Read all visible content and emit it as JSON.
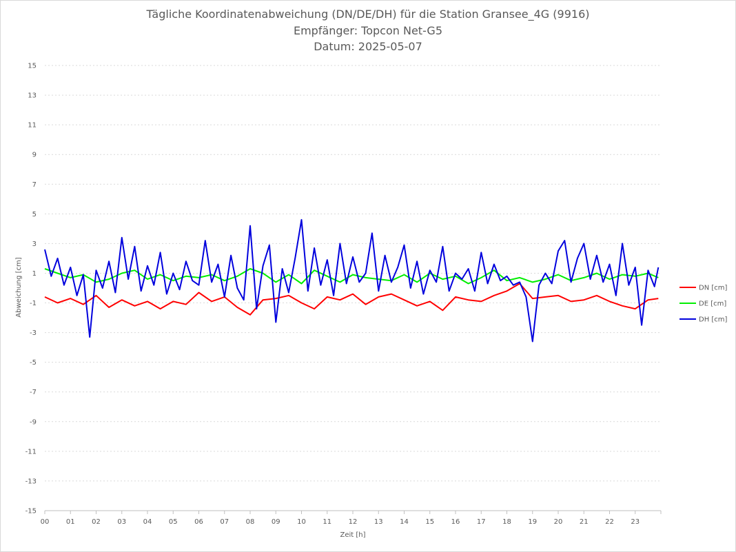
{
  "chart_data": {
    "type": "line",
    "title": "Tägliche Koordinatenabweichung (DN/DE/DH) für die Station Gransee_4G (9916)",
    "subtitle": "Empfänger: Topcon Net-G5",
    "date_line": "Datum: 2025-05-07",
    "xlabel": "Zeit [h]",
    "ylabel": "Abweichung [cm]",
    "xlim": [
      0,
      24
    ],
    "ylim": [
      -15,
      15
    ],
    "x_ticks": [
      "00",
      "01",
      "02",
      "03",
      "04",
      "05",
      "06",
      "07",
      "08",
      "09",
      "10",
      "11",
      "12",
      "13",
      "14",
      "15",
      "16",
      "17",
      "18",
      "19",
      "20",
      "21",
      "22",
      "23"
    ],
    "y_ticks": [
      "15",
      "13",
      "11",
      "9",
      "7",
      "5",
      "3",
      "1",
      "-1",
      "-3",
      "-5",
      "-7",
      "-9",
      "-11",
      "-13",
      "-15"
    ],
    "grid": true,
    "legend_position": "right",
    "series": [
      {
        "name": "DN [cm]",
        "color": "#ff0000",
        "x": [
          0.0,
          0.5,
          1.0,
          1.5,
          2.0,
          2.5,
          3.0,
          3.5,
          4.0,
          4.5,
          5.0,
          5.5,
          6.0,
          6.5,
          7.0,
          7.5,
          8.0,
          8.5,
          9.0,
          9.5,
          10.0,
          10.5,
          11.0,
          11.5,
          12.0,
          12.5,
          13.0,
          13.5,
          14.0,
          14.5,
          15.0,
          15.5,
          16.0,
          16.5,
          17.0,
          17.5,
          18.0,
          18.5,
          19.0,
          19.5,
          20.0,
          20.5,
          21.0,
          21.5,
          22.0,
          22.5,
          23.0,
          23.5,
          23.9
        ],
        "values": [
          -0.6,
          -1.0,
          -0.7,
          -1.1,
          -0.5,
          -1.3,
          -0.8,
          -1.2,
          -0.9,
          -1.4,
          -0.9,
          -1.1,
          -0.3,
          -0.9,
          -0.6,
          -1.3,
          -1.8,
          -0.8,
          -0.7,
          -0.5,
          -1.0,
          -1.4,
          -0.6,
          -0.8,
          -0.4,
          -1.1,
          -0.6,
          -0.4,
          -0.8,
          -1.2,
          -0.9,
          -1.5,
          -0.6,
          -0.8,
          -0.9,
          -0.5,
          -0.2,
          0.3,
          -0.7,
          -0.6,
          -0.5,
          -0.9,
          -0.8,
          -0.5,
          -0.9,
          -1.2,
          -1.4,
          -0.8,
          -0.7
        ]
      },
      {
        "name": "DE [cm]",
        "color": "#00ee00",
        "x": [
          0.0,
          0.5,
          1.0,
          1.5,
          2.0,
          2.5,
          3.0,
          3.5,
          4.0,
          4.5,
          5.0,
          5.5,
          6.0,
          6.5,
          7.0,
          7.5,
          8.0,
          8.5,
          9.0,
          9.5,
          10.0,
          10.5,
          11.0,
          11.5,
          12.0,
          12.5,
          13.0,
          13.5,
          14.0,
          14.5,
          15.0,
          15.5,
          16.0,
          16.5,
          17.0,
          17.5,
          18.0,
          18.5,
          19.0,
          19.5,
          20.0,
          20.5,
          21.0,
          21.5,
          22.0,
          22.5,
          23.0,
          23.5,
          23.9
        ],
        "values": [
          1.3,
          1.0,
          0.7,
          0.9,
          0.4,
          0.6,
          1.0,
          1.2,
          0.6,
          0.9,
          0.5,
          0.8,
          0.7,
          0.9,
          0.5,
          0.8,
          1.3,
          1.0,
          0.4,
          0.9,
          0.3,
          1.2,
          0.8,
          0.4,
          0.9,
          0.7,
          0.6,
          0.5,
          0.9,
          0.4,
          1.0,
          0.6,
          0.8,
          0.3,
          0.7,
          1.2,
          0.5,
          0.7,
          0.4,
          0.6,
          0.9,
          0.5,
          0.7,
          1.0,
          0.6,
          0.9,
          0.8,
          1.0,
          0.7
        ]
      },
      {
        "name": "DH [cm]",
        "color": "#0000dd",
        "x": [
          0.0,
          0.25,
          0.5,
          0.75,
          1.0,
          1.25,
          1.5,
          1.75,
          2.0,
          2.25,
          2.5,
          2.75,
          3.0,
          3.25,
          3.5,
          3.75,
          4.0,
          4.25,
          4.5,
          4.75,
          5.0,
          5.25,
          5.5,
          5.75,
          6.0,
          6.25,
          6.5,
          6.75,
          7.0,
          7.25,
          7.5,
          7.75,
          8.0,
          8.25,
          8.5,
          8.75,
          9.0,
          9.25,
          9.5,
          9.75,
          10.0,
          10.25,
          10.5,
          10.75,
          11.0,
          11.25,
          11.5,
          11.75,
          12.0,
          12.25,
          12.5,
          12.75,
          13.0,
          13.25,
          13.5,
          13.75,
          14.0,
          14.25,
          14.5,
          14.75,
          15.0,
          15.25,
          15.5,
          15.75,
          16.0,
          16.25,
          16.5,
          16.75,
          17.0,
          17.25,
          17.5,
          17.75,
          18.0,
          18.25,
          18.5,
          18.75,
          19.0,
          19.25,
          19.5,
          19.75,
          20.0,
          20.25,
          20.5,
          20.75,
          21.0,
          21.25,
          21.5,
          21.75,
          22.0,
          22.25,
          22.5,
          22.75,
          23.0,
          23.25,
          23.5,
          23.75,
          23.9
        ],
        "values": [
          2.6,
          0.8,
          2.0,
          0.2,
          1.4,
          -0.5,
          0.9,
          -3.3,
          1.2,
          0.0,
          1.8,
          -0.3,
          3.4,
          0.6,
          2.8,
          -0.2,
          1.5,
          0.2,
          2.4,
          -0.4,
          1.0,
          -0.1,
          1.8,
          0.5,
          0.2,
          3.2,
          0.4,
          1.6,
          -0.6,
          2.2,
          0.0,
          -0.8,
          4.2,
          -1.4,
          1.5,
          2.9,
          -2.3,
          1.3,
          -0.3,
          2.0,
          4.6,
          -0.2,
          2.7,
          0.2,
          1.9,
          -0.5,
          3.0,
          0.3,
          2.1,
          0.4,
          1.0,
          3.7,
          -0.2,
          2.2,
          0.4,
          1.4,
          2.9,
          0.0,
          1.8,
          -0.4,
          1.2,
          0.4,
          2.8,
          -0.2,
          1.0,
          0.6,
          1.3,
          -0.2,
          2.4,
          0.3,
          1.6,
          0.5,
          0.8,
          0.2,
          0.4,
          -0.6,
          -3.6,
          0.2,
          1.0,
          0.3,
          2.5,
          3.2,
          0.4,
          2.0,
          3.0,
          0.6,
          2.2,
          0.4,
          1.6,
          -0.5,
          3.0,
          0.2,
          1.4,
          -2.5,
          1.2,
          0.1,
          1.4
        ]
      }
    ]
  }
}
